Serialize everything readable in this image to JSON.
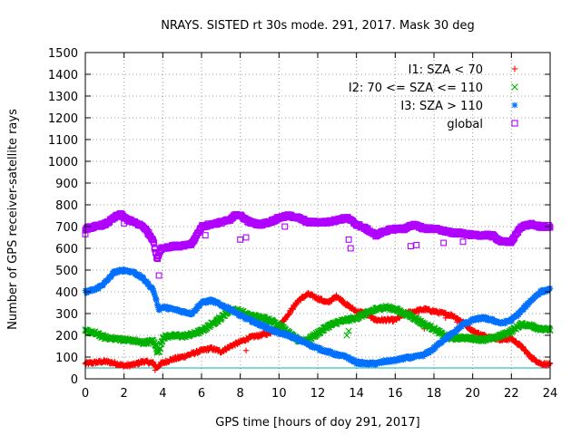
{
  "chart_data": {
    "type": "scatter",
    "title": "NRAYS. SISTED rt 30s mode. 291, 2017. Mask 30 deg",
    "xlabel": "GPS time [hours of doy 291, 2017]",
    "ylabel": "Number of GPS receiver-satellite rays",
    "xlim": [
      0,
      24
    ],
    "ylim": [
      0,
      1500
    ],
    "xticks": [
      "0",
      "2",
      "4",
      "6",
      "8",
      "10",
      "12",
      "14",
      "16",
      "18",
      "20",
      "22",
      "24"
    ],
    "yticks": [
      "0",
      "100",
      "200",
      "300",
      "400",
      "500",
      "600",
      "700",
      "800",
      "900",
      "1000",
      "1100",
      "1200",
      "1300",
      "1400",
      "1500"
    ],
    "grid": true,
    "legend_position": "top-right",
    "threshold_line": {
      "y": 50,
      "color": "#00b0b0"
    },
    "series": [
      {
        "name": "I1: SZA < 70",
        "marker": "plus",
        "color": "#ff0000",
        "x": [
          0,
          0.5,
          1,
          1.5,
          2,
          2.5,
          3,
          3.5,
          3.7,
          3.9,
          4.5,
          5,
          5.5,
          6,
          6.5,
          7,
          7.5,
          8,
          8.5,
          9,
          9.5,
          10,
          10.5,
          11,
          11.5,
          12,
          12.5,
          13,
          13.5,
          14,
          14.5,
          15,
          15.5,
          16,
          16.5,
          17,
          17.5,
          18,
          18.5,
          19,
          19.5,
          20,
          20.5,
          21,
          21.5,
          22,
          22.5,
          23,
          23.5,
          24
        ],
        "y": [
          70,
          75,
          80,
          72,
          60,
          65,
          80,
          72,
          50,
          70,
          90,
          100,
          115,
          130,
          140,
          125,
          150,
          170,
          190,
          200,
          210,
          240,
          300,
          360,
          390,
          370,
          350,
          380,
          340,
          310,
          300,
          270,
          270,
          270,
          300,
          310,
          320,
          310,
          300,
          290,
          260,
          220,
          200,
          190,
          180,
          185,
          150,
          100,
          70,
          65
        ]
      },
      {
        "name": "I2: 70 <= SZA <= 110",
        "marker": "x",
        "color": "#00b000",
        "x": [
          0,
          0.5,
          1,
          1.5,
          2,
          2.5,
          3,
          3.5,
          3.8,
          4,
          4.5,
          5,
          5.5,
          6,
          6.5,
          7,
          7.5,
          8,
          8.5,
          9,
          9.5,
          10,
          10.5,
          11,
          11.5,
          12,
          12.5,
          13,
          13.5,
          14,
          14.5,
          15,
          15.5,
          16,
          16.5,
          17,
          17.5,
          18,
          18.5,
          19,
          19.5,
          20,
          20.5,
          21,
          21.5,
          22,
          22.5,
          23,
          23.5,
          24
        ],
        "y": [
          220,
          210,
          190,
          185,
          180,
          175,
          165,
          175,
          120,
          190,
          200,
          195,
          205,
          220,
          250,
          280,
          320,
          310,
          290,
          285,
          270,
          250,
          210,
          175,
          180,
          210,
          240,
          260,
          270,
          280,
          300,
          320,
          330,
          320,
          300,
          280,
          250,
          230,
          200,
          185,
          190,
          185,
          180,
          185,
          200,
          220,
          250,
          245,
          230,
          225
        ]
      },
      {
        "name": "I3: SZA > 110",
        "marker": "star",
        "color": "#0070ff",
        "x": [
          0,
          0.5,
          1,
          1.5,
          2,
          2.5,
          3,
          3.5,
          3.8,
          4,
          4.5,
          5,
          5.5,
          6,
          6.5,
          7,
          7.5,
          8,
          8.5,
          9,
          9.5,
          10,
          10.5,
          11,
          11.5,
          12,
          12.5,
          13,
          13.5,
          14,
          14.5,
          15,
          15.5,
          16,
          16.5,
          17,
          17.5,
          18,
          18.5,
          19,
          19.5,
          20,
          20.5,
          21,
          21.5,
          22,
          22.5,
          23,
          23.5,
          24
        ],
        "y": [
          400,
          410,
          440,
          490,
          500,
          490,
          460,
          410,
          320,
          330,
          320,
          310,
          300,
          350,
          360,
          340,
          320,
          290,
          270,
          250,
          230,
          210,
          200,
          180,
          160,
          140,
          125,
          110,
          100,
          75,
          70,
          70,
          80,
          85,
          95,
          100,
          110,
          140,
          180,
          210,
          250,
          270,
          280,
          270,
          255,
          270,
          310,
          360,
          400,
          410
        ]
      },
      {
        "name": "global",
        "marker": "square",
        "color": "#b000ff",
        "x": [
          0,
          0.5,
          1,
          1.5,
          1.8,
          2,
          2.5,
          3,
          3.5,
          3.7,
          3.9,
          4.5,
          5,
          5.5,
          6,
          6.5,
          7,
          7.5,
          7.8,
          8,
          8.5,
          9,
          9.5,
          10,
          10.5,
          11,
          11.5,
          12,
          12.5,
          13,
          13.5,
          14,
          14.5,
          15,
          15.5,
          16,
          16.5,
          17,
          17.5,
          18,
          18.5,
          19,
          19.5,
          20,
          20.5,
          21,
          21.5,
          22,
          22.5,
          23,
          23.5,
          24
        ],
        "y": [
          690,
          700,
          710,
          740,
          760,
          740,
          720,
          700,
          640,
          550,
          600,
          610,
          610,
          620,
          700,
          710,
          720,
          730,
          760,
          750,
          720,
          710,
          720,
          740,
          750,
          740,
          720,
          720,
          720,
          730,
          740,
          710,
          690,
          660,
          680,
          690,
          690,
          710,
          690,
          690,
          680,
          670,
          670,
          660,
          660,
          660,
          630,
          630,
          700,
          710,
          700,
          700
        ]
      }
    ],
    "outliers": {
      "global": [
        [
          0,
          665
        ],
        [
          2,
          715
        ],
        [
          3.8,
          475
        ],
        [
          6.2,
          660
        ],
        [
          8,
          640
        ],
        [
          8.3,
          650
        ],
        [
          10.3,
          700
        ],
        [
          13.6,
          640
        ],
        [
          13.7,
          600
        ],
        [
          16.8,
          610
        ],
        [
          17.1,
          615
        ],
        [
          18.5,
          625
        ],
        [
          19.5,
          630
        ],
        [
          21,
          650
        ]
      ],
      "I1: SZA < 70": [
        [
          3.6,
          40
        ],
        [
          8.3,
          130
        ],
        [
          14.3,
          300
        ],
        [
          17.5,
          230
        ],
        [
          18.6,
          280
        ],
        [
          19.2,
          260
        ]
      ],
      "I2: 70 <= SZA <= 110": [
        [
          3.7,
          120
        ],
        [
          3.85,
          140
        ],
        [
          13.5,
          200
        ],
        [
          13.6,
          220
        ]
      ]
    }
  }
}
